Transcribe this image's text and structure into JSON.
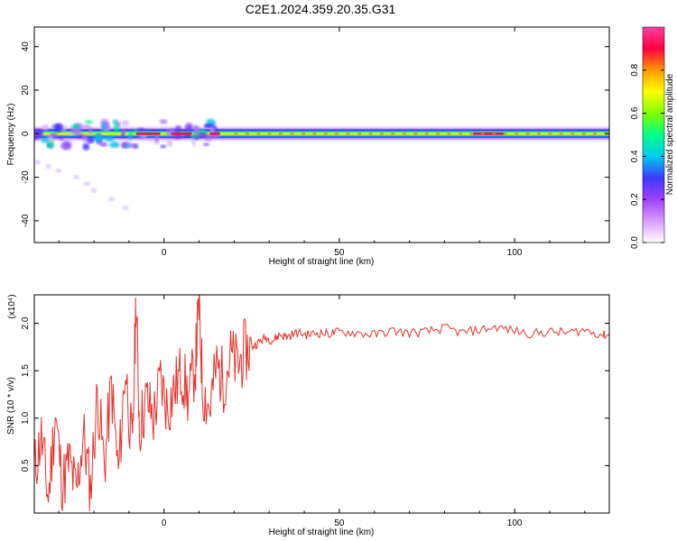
{
  "title": "C2E1.2024.359.20.35.G31",
  "chart_data": [
    {
      "type": "heatmap",
      "xlabel": "Height of straight line (km)",
      "ylabel": "Frequency (Hz)",
      "xlim": [
        -37,
        127
      ],
      "ylim": [
        -50,
        49
      ],
      "xticks": [
        0,
        50,
        100
      ],
      "yticks": [
        40,
        20,
        0,
        -20,
        -40
      ],
      "grid": false,
      "colorbar": {
        "label": "Normalized spectral amplitude",
        "range": [
          0.0,
          1.0
        ],
        "ticks": [
          "0.0",
          "0.2",
          "0.4",
          "0.6",
          "0.8"
        ],
        "colors": [
          "#ffffff",
          "#d89cff",
          "#a040ff",
          "#3c3cff",
          "#00ccee",
          "#00ff88",
          "#80ff00",
          "#ffff00",
          "#ff9900",
          "#ff0040",
          "#ff40a0"
        ]
      },
      "ridge": {
        "frequency": 0,
        "x_range": [
          -37,
          127
        ],
        "peak_segments": [
          [
            -8,
            -1
          ],
          [
            2,
            8
          ],
          [
            13,
            16
          ],
          [
            88,
            97
          ]
        ]
      },
      "scatter_trail": {
        "x": [
          -36,
          -33,
          -30,
          -25,
          -22,
          -20,
          -15,
          -11
        ],
        "y": [
          -13,
          -15,
          -17,
          -20,
          -23,
          -26,
          -30,
          -34
        ]
      }
    },
    {
      "type": "line",
      "xlabel": "Height of straight line (km)",
      "ylabel": "SNR (10 * v/v)",
      "y_multiplier": "(x10⁴)",
      "xlim": [
        -37,
        127
      ],
      "ylim": [
        0.0,
        2.3
      ],
      "xticks": [
        0,
        50,
        100
      ],
      "yticks": [
        "0.5",
        "1.0",
        "1.5",
        "2.0"
      ],
      "grid": false,
      "color": "#e8302a",
      "series": [
        {
          "x": [
            -37,
            -35,
            -33,
            -31,
            -29,
            -27,
            -25,
            -23,
            -21,
            -19,
            -17,
            -15,
            -13,
            -11,
            -9,
            -8,
            -7,
            -5,
            -3,
            -1,
            1,
            3,
            5,
            7,
            9,
            10,
            11,
            13,
            15,
            17,
            19,
            21,
            23,
            25,
            27,
            29,
            31,
            33,
            35,
            38,
            41,
            44,
            47,
            50,
            55,
            60,
            65,
            70,
            75,
            80,
            85,
            90,
            95,
            100,
            105,
            110,
            115,
            120,
            125,
            127
          ],
          "y": [
            0.45,
            0.8,
            0.15,
            1.05,
            0.3,
            0.55,
            0.2,
            0.85,
            0.25,
            1.25,
            0.5,
            1.35,
            0.4,
            1.55,
            0.6,
            2.3,
            0.9,
            1.2,
            1.0,
            1.4,
            1.1,
            1.3,
            1.5,
            1.2,
            1.6,
            2.25,
            1.3,
            1.1,
            1.55,
            1.4,
            1.65,
            1.55,
            1.7,
            1.75,
            1.8,
            1.85,
            1.82,
            1.88,
            1.86,
            1.9,
            1.88,
            1.9,
            1.89,
            1.91,
            1.9,
            1.88,
            1.92,
            1.9,
            1.91,
            1.95,
            1.9,
            1.93,
            1.96,
            1.92,
            1.89,
            1.91,
            1.9,
            1.93,
            1.88,
            1.87
          ]
        }
      ]
    }
  ]
}
